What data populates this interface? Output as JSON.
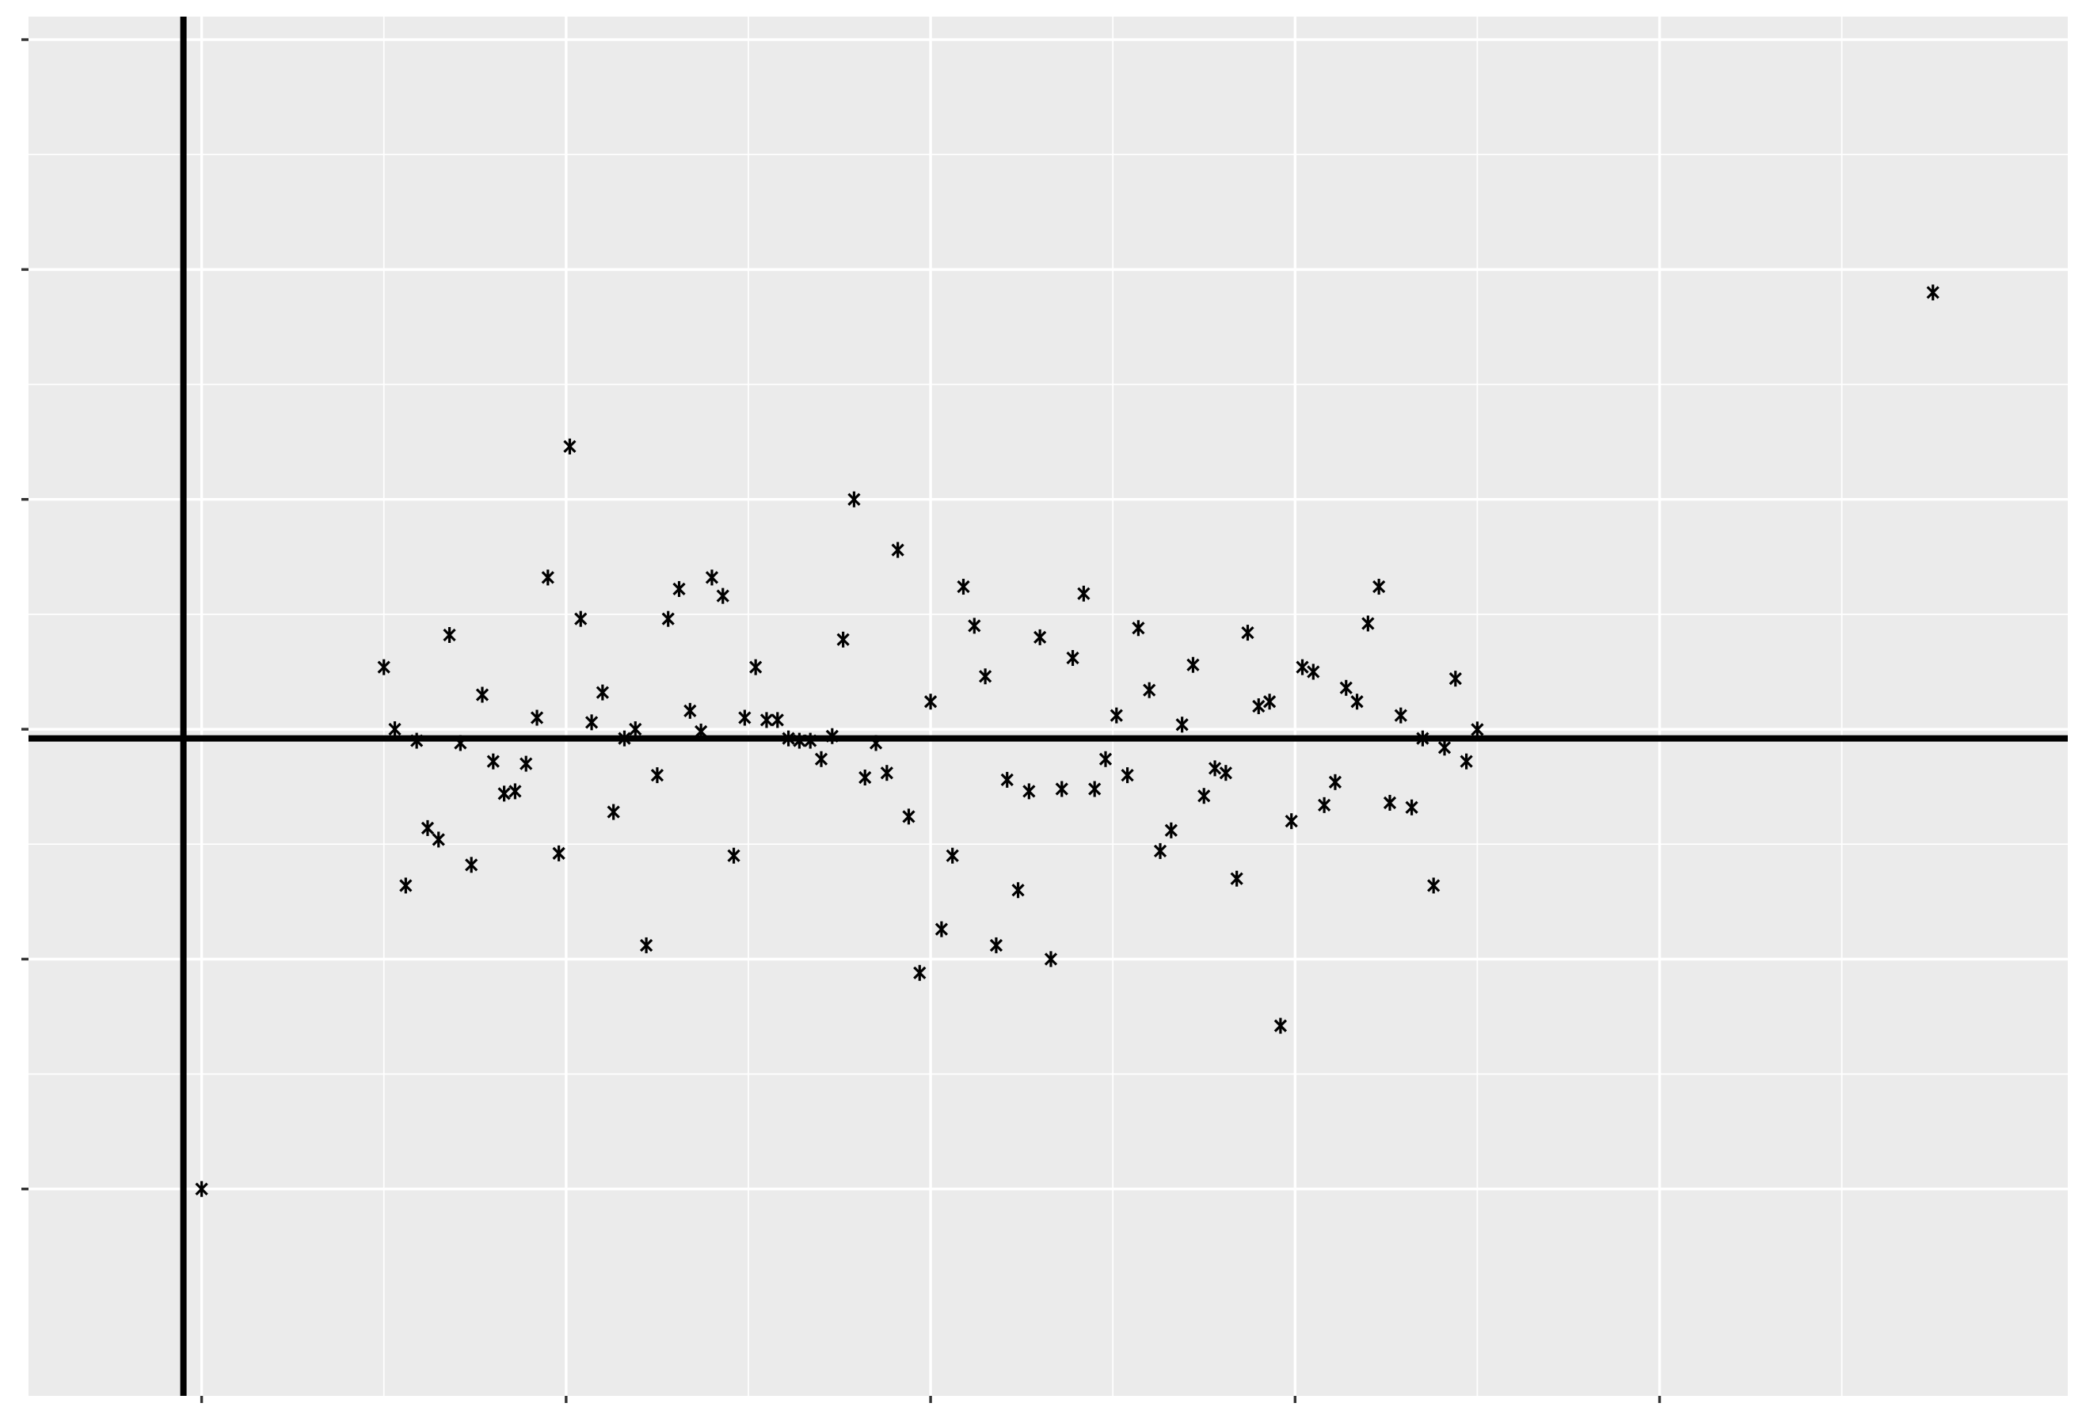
{
  "chart_data": {
    "type": "scatter",
    "title": "",
    "xlabel": "",
    "ylabel": "",
    "x_tick_labels": [],
    "y_tick_labels": [],
    "xlim": [
      -0.95,
      10.24
    ],
    "ylim": [
      -1.9,
      4.1
    ],
    "grid": true,
    "legend": "none",
    "marker": "asterisk",
    "colors": {
      "panel": "#EBEBEB",
      "grid": "#FFFFFF",
      "points": "#000000",
      "reference_lines": "#000000"
    },
    "reference_lines": {
      "vline_x": -0.1,
      "hline_y": 0.96
    },
    "series": [
      {
        "x": [
          0.0,
          1.0,
          1.06,
          1.12,
          1.18,
          1.24,
          1.3,
          1.36,
          1.42,
          1.48,
          1.54,
          1.6,
          1.66,
          1.72,
          1.78,
          1.84,
          1.9,
          1.96,
          2.02,
          2.08,
          2.14,
          2.2,
          2.26,
          2.32,
          2.38,
          2.44,
          2.5,
          2.56,
          2.62,
          2.68,
          2.74,
          2.8,
          2.86,
          2.92,
          2.98,
          3.04,
          3.1,
          3.16,
          3.22,
          3.28,
          3.34,
          3.4,
          3.46,
          3.52,
          3.58,
          3.64,
          3.7,
          3.76,
          3.82,
          3.88,
          3.94,
          4.0,
          4.06,
          4.12,
          4.18,
          4.24,
          4.3,
          4.36,
          4.42,
          4.48,
          4.54,
          4.6,
          4.66,
          4.72,
          4.78,
          4.84,
          4.9,
          4.96,
          5.02,
          5.08,
          5.14,
          5.2,
          5.26,
          5.32,
          5.38,
          5.44,
          5.5,
          5.56,
          5.62,
          5.68,
          5.74,
          5.8,
          5.86,
          5.92,
          5.98,
          6.04,
          6.1,
          6.16,
          6.22,
          6.28,
          6.34,
          6.4,
          6.46,
          6.52,
          6.58,
          6.64,
          6.7,
          6.76,
          6.82,
          6.88,
          6.94,
          7.0,
          9.5
        ],
        "y": [
          -1.0,
          1.27,
          1.0,
          0.32,
          0.95,
          0.57,
          0.52,
          1.41,
          0.94,
          0.41,
          1.15,
          0.86,
          0.72,
          0.73,
          0.85,
          1.05,
          1.66,
          0.46,
          2.23,
          1.48,
          1.03,
          1.16,
          0.64,
          0.96,
          1.0,
          0.06,
          0.8,
          1.48,
          1.61,
          1.08,
          0.99,
          1.66,
          1.58,
          0.45,
          1.05,
          1.27,
          1.04,
          1.04,
          0.96,
          0.95,
          0.95,
          0.87,
          0.97,
          1.39,
          2.0,
          0.79,
          0.94,
          0.81,
          1.78,
          0.62,
          -0.06,
          1.12,
          0.13,
          0.45,
          1.62,
          1.45,
          1.23,
          0.06,
          0.78,
          0.3,
          0.73,
          1.4,
          0.0,
          0.74,
          1.31,
          1.59,
          0.74,
          0.87,
          1.06,
          0.8,
          1.44,
          1.17,
          0.47,
          0.56,
          1.02,
          1.28,
          0.71,
          0.83,
          0.81,
          0.35,
          1.42,
          1.1,
          1.12,
          -0.29,
          0.6,
          1.27,
          1.25,
          0.67,
          0.77,
          1.18,
          1.12,
          1.46,
          1.62,
          0.68,
          1.06,
          0.66,
          0.96,
          0.32,
          0.92,
          1.22,
          0.86,
          0.999,
          2.9
        ]
      }
    ]
  }
}
